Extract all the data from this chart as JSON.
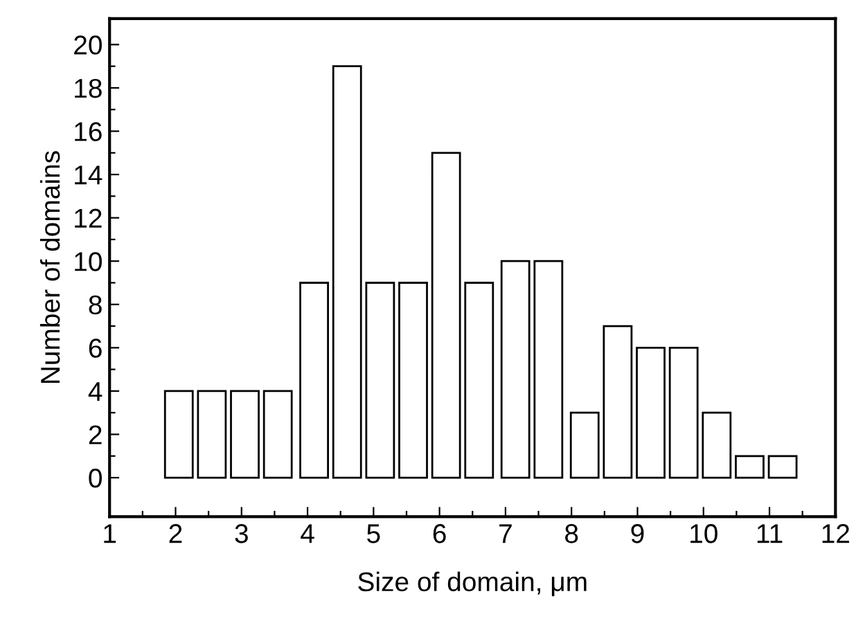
{
  "chart_data": {
    "type": "bar",
    "xlabel": "Size of domain, μm",
    "ylabel": "Number of domains",
    "x": [
      2.05,
      2.55,
      3.05,
      3.55,
      4.1,
      4.6,
      5.1,
      5.6,
      6.1,
      6.6,
      7.15,
      7.65,
      8.2,
      8.7,
      9.2,
      9.7,
      10.2,
      10.7,
      11.2
    ],
    "values": [
      4,
      4,
      4,
      4,
      9,
      19,
      9,
      9,
      15,
      9,
      10,
      10,
      3,
      7,
      6,
      6,
      3,
      1,
      1
    ],
    "color": "#ffffff",
    "xlim": [
      1,
      12
    ],
    "ylim": [
      -1.8,
      21.2
    ],
    "xticks": [
      1,
      {
        "value": 1.5,
        "label": null
      },
      2,
      {
        "value": 2.5,
        "label": null
      },
      3,
      {
        "value": 3.5,
        "label": null
      },
      4,
      {
        "value": 4.5,
        "label": null
      },
      5,
      {
        "value": 5.5,
        "label": null
      },
      6,
      {
        "value": 6.5,
        "label": null
      },
      7,
      {
        "value": 7.5,
        "label": null
      },
      8,
      {
        "value": 8.5,
        "label": null
      },
      9,
      {
        "value": 9.5,
        "label": null
      },
      10,
      {
        "value": 10.5,
        "label": null
      },
      11,
      {
        "value": 11.5,
        "label": null
      },
      12
    ],
    "yticks": [
      0,
      {
        "value": 1,
        "label": null
      },
      2,
      {
        "value": 3,
        "label": null
      },
      4,
      {
        "value": 5,
        "label": null
      },
      6,
      {
        "value": 7,
        "label": null
      },
      8,
      {
        "value": 9,
        "label": null
      },
      10,
      {
        "value": 11,
        "label": null
      },
      12,
      {
        "value": 13,
        "label": null
      },
      14,
      {
        "value": 15,
        "label": null
      },
      16,
      {
        "value": 17,
        "label": null
      },
      18,
      {
        "value": 19,
        "label": null
      },
      20
    ],
    "grid": false,
    "legend": false
  }
}
